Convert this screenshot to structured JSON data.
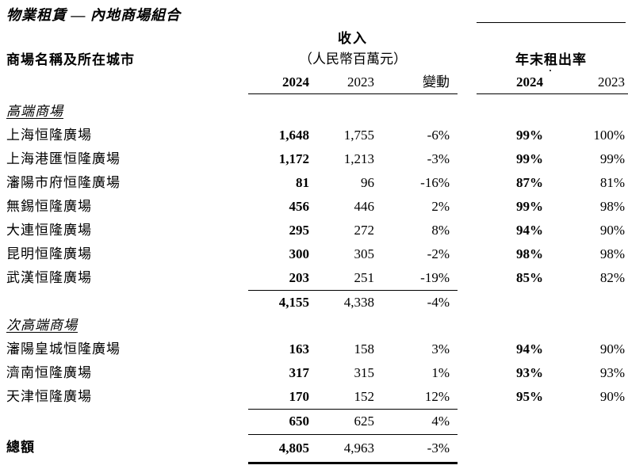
{
  "title": "物業租賃 — 內地商場組合",
  "table": {
    "name_header": "商場名稱及所在城市",
    "revenue_group": {
      "title": "收入",
      "subtitle": "（人民幣百萬元）",
      "year_current": "2024",
      "year_prior": "2023",
      "change_label": "變動"
    },
    "occupancy_group": {
      "title": "年末租出率",
      "year_current": "2024",
      "year_prior": "2023"
    },
    "rows": [
      {
        "type": "section",
        "name": "高端商場"
      },
      {
        "type": "data",
        "name": "上海恒隆廣場",
        "rev_2024": "1,648",
        "rev_2023": "1,755",
        "change": "-6%",
        "occ_2024": "99%",
        "occ_2023": "100%"
      },
      {
        "type": "data",
        "name": "上海港匯恒隆廣場",
        "rev_2024": "1,172",
        "rev_2023": "1,213",
        "change": "-3%",
        "occ_2024": "99%",
        "occ_2023": "99%"
      },
      {
        "type": "data",
        "name": "瀋陽市府恒隆廣場",
        "rev_2024": "81",
        "rev_2023": "96",
        "change": "-16%",
        "occ_2024": "87%",
        "occ_2023": "81%"
      },
      {
        "type": "data",
        "name": "無錫恒隆廣場",
        "rev_2024": "456",
        "rev_2023": "446",
        "change": "2%",
        "occ_2024": "99%",
        "occ_2023": "98%"
      },
      {
        "type": "data",
        "name": "大連恒隆廣場",
        "rev_2024": "295",
        "rev_2023": "272",
        "change": "8%",
        "occ_2024": "94%",
        "occ_2023": "90%"
      },
      {
        "type": "data",
        "name": "昆明恒隆廣場",
        "rev_2024": "300",
        "rev_2023": "305",
        "change": "-2%",
        "occ_2024": "98%",
        "occ_2023": "98%"
      },
      {
        "type": "data",
        "name": "武漢恒隆廣場",
        "rev_2024": "203",
        "rev_2023": "251",
        "change": "-19%",
        "occ_2024": "85%",
        "occ_2023": "82%"
      },
      {
        "type": "subtotal",
        "name": "",
        "rev_2024": "4,155",
        "rev_2023": "4,338",
        "change": "-4%",
        "occ_2024": "",
        "occ_2023": ""
      },
      {
        "type": "section",
        "name": "次高端商場"
      },
      {
        "type": "data",
        "name": "瀋陽皇城恒隆廣場",
        "rev_2024": "163",
        "rev_2023": "158",
        "change": "3%",
        "occ_2024": "94%",
        "occ_2023": "90%"
      },
      {
        "type": "data",
        "name": "濟南恒隆廣場",
        "rev_2024": "317",
        "rev_2023": "315",
        "change": "1%",
        "occ_2024": "93%",
        "occ_2023": "93%"
      },
      {
        "type": "data",
        "name": "天津恒隆廣場",
        "rev_2024": "170",
        "rev_2023": "152",
        "change": "12%",
        "occ_2024": "95%",
        "occ_2023": "90%"
      },
      {
        "type": "subtotal",
        "name": "",
        "rev_2024": "650",
        "rev_2023": "625",
        "change": "4%",
        "occ_2024": "",
        "occ_2023": ""
      },
      {
        "type": "total",
        "name": "總額",
        "rev_2024": "4,805",
        "rev_2023": "4,963",
        "change": "-3%",
        "occ_2024": "",
        "occ_2023": ""
      }
    ]
  }
}
